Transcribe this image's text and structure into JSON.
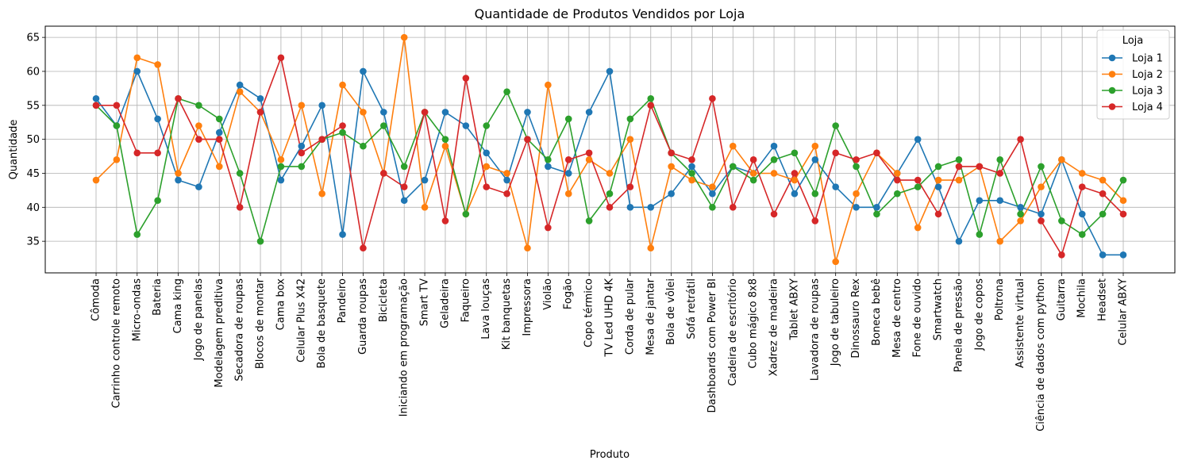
{
  "chart_data": {
    "type": "line",
    "title": "Quantidade de Produtos Vendidos por Loja",
    "xlabel": "Produto",
    "ylabel": "Quantidade",
    "ylim": [
      30.35,
      66.65
    ],
    "yticks": [
      35,
      40,
      45,
      50,
      55,
      60,
      65
    ],
    "grid": true,
    "legend_title": "Loja",
    "legend_placement": "top-right",
    "categories": [
      "Cômoda",
      "Carrinho controle remoto",
      "Micro-ondas",
      "Bateria",
      "Cama king",
      "Jogo de panelas",
      "Modelagem preditiva",
      "Secadora de roupas",
      "Blocos de montar",
      "Cama box",
      "Celular Plus X42",
      "Bola de basquete",
      "Pandeiro",
      "Guarda roupas",
      "Bicicleta",
      "Iniciando em programação",
      "Smart TV",
      "Geladeira",
      "Faqueiro",
      "Lava louças",
      "Kit banquetas",
      "Impressora",
      "Violão",
      "Fogão",
      "Copo térmico",
      "TV Led UHD 4K",
      "Corda de pular",
      "Mesa de jantar",
      "Bola de vôlei",
      "Sofá retrátil",
      "Dashboards com Power BI",
      "Cadeira de escritório",
      "Cubo mágico 8x8",
      "Xadrez de madeira",
      "Tablet ABXY",
      "Lavadora de roupas",
      "Jogo de tabuleiro",
      "Dinossauro Rex",
      "Boneca bebê",
      "Mesa de centro",
      "Fone de ouvido",
      "Smartwatch",
      "Panela de pressão",
      "Jogo de copos",
      "Poltrona",
      "Assistente virtual",
      "Ciência de dados com python",
      "Guitarra",
      "Mochila",
      "Headset",
      "Celular ABXY"
    ],
    "series": [
      {
        "name": "Loja 1",
        "color": "#1f77b4",
        "values": [
          56,
          52,
          60,
          53,
          44,
          43,
          51,
          58,
          56,
          44,
          49,
          55,
          36,
          60,
          54,
          41,
          44,
          54,
          52,
          48,
          44,
          54,
          46,
          45,
          54,
          60,
          40,
          40,
          42,
          46,
          42,
          46,
          45,
          49,
          42,
          47,
          43,
          40,
          40,
          45,
          50,
          43,
          35,
          41,
          41,
          40,
          39,
          47,
          39,
          33,
          33
        ]
      },
      {
        "name": "Loja 2",
        "color": "#ff7f0e",
        "values": [
          44,
          47,
          62,
          61,
          45,
          52,
          46,
          57,
          54,
          47,
          55,
          42,
          58,
          54,
          45,
          65,
          40,
          49,
          39,
          46,
          45,
          34,
          58,
          42,
          47,
          45,
          50,
          34,
          46,
          44,
          43,
          49,
          45,
          45,
          44,
          49,
          32,
          42,
          48,
          45,
          37,
          44,
          44,
          46,
          35,
          38,
          43,
          47,
          45,
          44,
          41
        ]
      },
      {
        "name": "Loja 3",
        "color": "#2ca02c",
        "values": [
          55,
          52,
          36,
          41,
          56,
          55,
          53,
          45,
          35,
          46,
          46,
          50,
          51,
          49,
          52,
          46,
          54,
          50,
          39,
          52,
          57,
          50,
          47,
          53,
          38,
          42,
          53,
          56,
          48,
          45,
          40,
          46,
          44,
          47,
          48,
          42,
          52,
          46,
          39,
          42,
          43,
          46,
          47,
          36,
          47,
          39,
          46,
          38,
          36,
          39,
          44
        ]
      },
      {
        "name": "Loja 4",
        "color": "#d62728",
        "values": [
          55,
          55,
          48,
          48,
          56,
          50,
          50,
          40,
          54,
          62,
          48,
          50,
          52,
          34,
          45,
          43,
          54,
          38,
          59,
          43,
          42,
          50,
          37,
          47,
          48,
          40,
          43,
          55,
          48,
          47,
          56,
          40,
          47,
          39,
          45,
          38,
          48,
          47,
          48,
          44,
          44,
          39,
          46,
          46,
          45,
          50,
          38,
          33,
          43,
          42,
          39
        ]
      }
    ]
  }
}
